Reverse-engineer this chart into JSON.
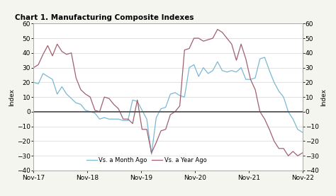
{
  "title": "Chart 1. Manufacturing Composite Indexes",
  "ylabel_left": "Index",
  "ylabel_right": "Index",
  "ylim": [
    -40,
    60
  ],
  "yticks": [
    -40,
    -30,
    -20,
    -10,
    0,
    10,
    20,
    30,
    40,
    50,
    60
  ],
  "xtick_labels": [
    "Nov-17",
    "Nov-18",
    "Nov-19",
    "Nov-20",
    "Nov-21",
    "Nov-22"
  ],
  "legend_labels": [
    "Vs. a Month Ago",
    "Vs. a Year Ago"
  ],
  "line_month_color": "#7ab8d4",
  "line_year_color": "#a06070",
  "background_color": "#f5f5f0",
  "plot_bg_color": "#ffffff",
  "zero_line_color": "#555555",
  "month_ago": [
    20,
    19,
    26,
    24,
    22,
    12,
    17,
    12,
    9,
    6,
    5,
    1,
    0,
    -1,
    -5,
    -4,
    -5,
    -5,
    -5,
    -6,
    -6,
    8,
    7,
    1,
    -5,
    -29,
    -4,
    2,
    3,
    12,
    13,
    11,
    10,
    30,
    32,
    24,
    30,
    26,
    28,
    34,
    28,
    27,
    28,
    27,
    30,
    22,
    22,
    23,
    36,
    37,
    28,
    20,
    14,
    10,
    0,
    -5,
    -12,
    -14
  ],
  "year_ago": [
    30,
    32,
    39,
    45,
    38,
    46,
    41,
    39,
    40,
    23,
    15,
    12,
    10,
    1,
    0,
    10,
    9,
    5,
    2,
    -5,
    -5,
    -8,
    8,
    -12,
    -12,
    -28,
    -21,
    -13,
    -12,
    -2,
    0,
    4,
    42,
    43,
    50,
    50,
    48,
    49,
    50,
    56,
    54,
    50,
    46,
    35,
    46,
    36,
    22,
    15,
    0,
    -5,
    -12,
    -20,
    -25,
    -25,
    -30,
    -27,
    -30,
    -28
  ]
}
